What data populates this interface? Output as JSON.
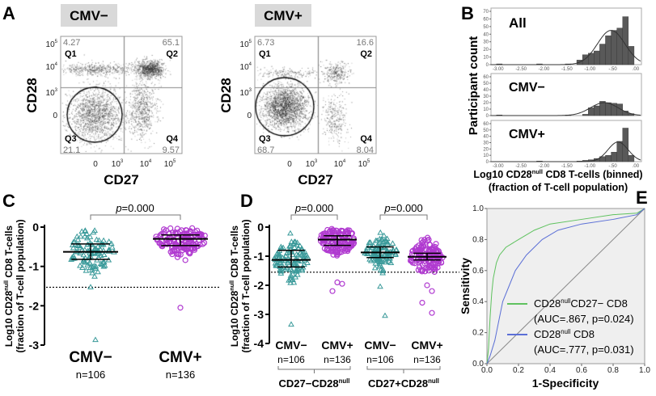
{
  "panel_labels": [
    "A",
    "B",
    "C",
    "D",
    "E"
  ],
  "chart_data": [
    {
      "panel": "A",
      "type": "scatter",
      "plots": [
        {
          "title": "CMV−",
          "quadrants": {
            "Q1": "4.27",
            "Q2": "65.1",
            "Q3": "21.1",
            "Q4": "9.57"
          }
        },
        {
          "title": "CMV+",
          "quadrants": {
            "Q1": "6.73",
            "Q2": "16.6",
            "Q3": "68.7",
            "Q4": "8.04"
          }
        }
      ],
      "quadrant_names": [
        "Q1",
        "Q2",
        "Q3",
        "Q4"
      ],
      "xlabel": "CD27",
      "ylabel": "CD28",
      "xticks": [
        "0",
        "10",
        "10",
        "10"
      ],
      "xtick_exp": [
        "",
        "3",
        "4",
        "5"
      ],
      "yticks": [
        "10",
        "10",
        "10",
        "0"
      ],
      "ytick_exp": [
        "5",
        "4",
        "3",
        ""
      ]
    },
    {
      "panel": "B",
      "type": "bar",
      "ylabel": "Participant count",
      "xlabel_pre": "Log10 CD28",
      "xlabel_sup": "null",
      "xlabel_post": " CD8 T-cells (binned)",
      "xlabel2": "(fraction of T-cell population)",
      "xticks": [
        "-3.00",
        "-2.50",
        "-2.00",
        "-1.50",
        "-1.00",
        "-.50",
        ".00"
      ],
      "xtick_values": [
        -3.0,
        -2.5,
        -2.0,
        -1.5,
        -1.0,
        -0.5,
        0.0
      ],
      "xlim": [
        -3.12,
        0.16
      ],
      "bin_width": 0.125,
      "bin_starts": [
        -3.0,
        -2.125,
        -1.5,
        -1.25,
        -1.125,
        -1.0,
        -0.875,
        -0.75,
        -0.625,
        -0.5,
        -0.375,
        -0.25,
        -0.125
      ],
      "series": [
        {
          "name": "All",
          "ylim": [
            0,
            70
          ],
          "yticks": [
            "0",
            "10",
            "20",
            "30",
            "40",
            "50",
            "60",
            "70"
          ],
          "values": [
            1,
            1,
            1,
            6,
            13,
            15,
            18,
            27,
            38,
            45,
            48,
            63,
            24
          ],
          "fit": {
            "mean": -0.5,
            "sd": 0.3,
            "peak": 45
          }
        },
        {
          "name": "CMV−",
          "ylim": [
            0,
            60
          ],
          "yticks": [
            "0",
            "10",
            "20",
            "30",
            "40",
            "50",
            "60"
          ],
          "values": [
            1,
            0,
            1,
            0,
            2,
            12,
            15,
            22,
            20,
            19,
            18,
            7,
            3
          ],
          "fit": {
            "mean": -0.65,
            "sd": 0.3,
            "peak": 20
          }
        },
        {
          "name": "CMV+",
          "ylim": [
            0,
            60
          ],
          "yticks": [
            "0",
            "10",
            "20",
            "30",
            "40",
            "50",
            "60"
          ],
          "values": [
            0,
            1,
            0,
            1,
            2,
            3,
            5,
            8,
            10,
            15,
            32,
            53,
            10
          ],
          "fit": {
            "mean": -0.35,
            "sd": 0.22,
            "peak": 31
          }
        }
      ],
      "bar_color": "#595959"
    },
    {
      "panel": "C",
      "type": "scatter",
      "ylabel_pre": "Log10 CD28",
      "ylabel_sup": "null",
      "ylabel_post": " CD8 T-cells",
      "ylabel2": "(fraction of T-cell population)",
      "ylim": [
        -3,
        0
      ],
      "yticks": [
        "0",
        "-1",
        "-2",
        "-3"
      ],
      "ytick_values": [
        0,
        -1,
        -2,
        -3
      ],
      "threshold": -1.53,
      "p_label_italic": "p",
      "p_label": "=0.000",
      "groups": [
        {
          "label": "CMV−",
          "n": "n=106",
          "count": 106,
          "marker": "triangle",
          "color": "#3a9a9a",
          "median": -0.63,
          "q1": -0.82,
          "q3": -0.43,
          "sd": 0.28,
          "range": [
            -1.3,
            -0.05
          ],
          "outliers": [
            -1.53,
            -2.87
          ]
        },
        {
          "label": "CMV+",
          "n": "n=136",
          "count": 136,
          "marker": "circle",
          "color": "#b03ad0",
          "median": -0.3,
          "q1": -0.47,
          "q3": -0.2,
          "sd": 0.22,
          "range": [
            -1.25,
            -0.02
          ],
          "outliers": [
            -2.05
          ]
        }
      ]
    },
    {
      "panel": "D",
      "type": "scatter",
      "ylabel_pre": "Log10 CD28",
      "ylabel_sup": "null",
      "ylabel_post": " CD8 T-cells",
      "ylabel2": "(fraction of T-cell population)",
      "ylim": [
        -4,
        0
      ],
      "yticks": [
        "0",
        "-1",
        "-2",
        "-3",
        "-4"
      ],
      "ytick_values": [
        0,
        -1,
        -2,
        -3,
        -4
      ],
      "threshold": -1.55,
      "p_labels": [
        {
          "italic": "p",
          "text": "=0.000"
        },
        {
          "italic": "p",
          "text": "=0.000"
        }
      ],
      "subsets": [
        {
          "pre": "CD27−CD28",
          "sup": "null"
        },
        {
          "pre": "CD27+CD28",
          "sup": "null"
        }
      ],
      "groups": [
        {
          "label": "CMV−",
          "n": "n=106",
          "count": 106,
          "marker": "triangle",
          "color": "#3a9a9a",
          "median": -1.13,
          "q1": -1.37,
          "q3": -0.8,
          "sd": 0.35,
          "range": [
            -2.0,
            -0.1
          ],
          "outliers": [
            -3.35
          ]
        },
        {
          "label": "CMV+",
          "n": "n=136",
          "count": 136,
          "marker": "circle",
          "color": "#b03ad0",
          "median": -0.43,
          "q1": -0.63,
          "q3": -0.3,
          "sd": 0.3,
          "range": [
            -1.3,
            -0.05
          ],
          "outliers": [
            -1.9,
            -1.95,
            -2.2
          ]
        },
        {
          "label": "CMV−",
          "n": "n=106",
          "count": 106,
          "marker": "triangle",
          "color": "#3a9a9a",
          "median": -0.87,
          "q1": -1.05,
          "q3": -0.68,
          "sd": 0.3,
          "range": [
            -1.6,
            -0.1
          ],
          "outliers": [
            -2.05,
            -3.05
          ]
        },
        {
          "label": "CMV+",
          "n": "n=136",
          "count": 136,
          "marker": "circle",
          "color": "#b03ad0",
          "median": -1.02,
          "q1": -1.13,
          "q3": -0.9,
          "sd": 0.3,
          "range": [
            -1.6,
            -0.25
          ],
          "outliers": [
            -2.0,
            -2.2,
            -2.6,
            -2.95
          ]
        }
      ]
    },
    {
      "panel": "E",
      "type": "line",
      "xlabel": "1-Specificity",
      "ylabel": "Sensitivity",
      "xlim": [
        0,
        1
      ],
      "ylim": [
        0,
        1
      ],
      "xticks": [
        "0.0",
        "0.2",
        "0.4",
        "0.6",
        "0.8",
        "1.0"
      ],
      "yticks": [
        "0.0",
        "0.2",
        "0.4",
        "0.6",
        "0.8",
        "1.0"
      ],
      "tick_values": [
        0,
        0.2,
        0.4,
        0.6,
        0.8,
        1.0
      ],
      "background": "#efefef",
      "series": [
        {
          "name_pre": "CD28",
          "name_sup": "null",
          "name_post": "CD27− CD8",
          "stats": "(AUC=.867, p=0.024)",
          "color": "#5fc25f",
          "x": [
            0,
            0.01,
            0.02,
            0.03,
            0.04,
            0.06,
            0.08,
            0.12,
            0.2,
            0.3,
            0.4,
            0.6,
            0.8,
            0.95,
            1
          ],
          "y": [
            0,
            0.1,
            0.3,
            0.45,
            0.55,
            0.65,
            0.7,
            0.75,
            0.8,
            0.86,
            0.9,
            0.93,
            0.96,
            0.97,
            1
          ]
        },
        {
          "name_pre": "CD28",
          "name_sup": "null",
          "name_post": " CD8",
          "stats": "(AUC=.777, p=0.031)",
          "color": "#5b6fd6",
          "x": [
            0,
            0.02,
            0.05,
            0.08,
            0.1,
            0.14,
            0.18,
            0.25,
            0.35,
            0.45,
            0.6,
            0.8,
            0.95,
            1
          ],
          "y": [
            0,
            0.05,
            0.15,
            0.3,
            0.4,
            0.5,
            0.6,
            0.7,
            0.8,
            0.86,
            0.9,
            0.93,
            0.96,
            1
          ]
        }
      ],
      "reference_line": true
    }
  ]
}
